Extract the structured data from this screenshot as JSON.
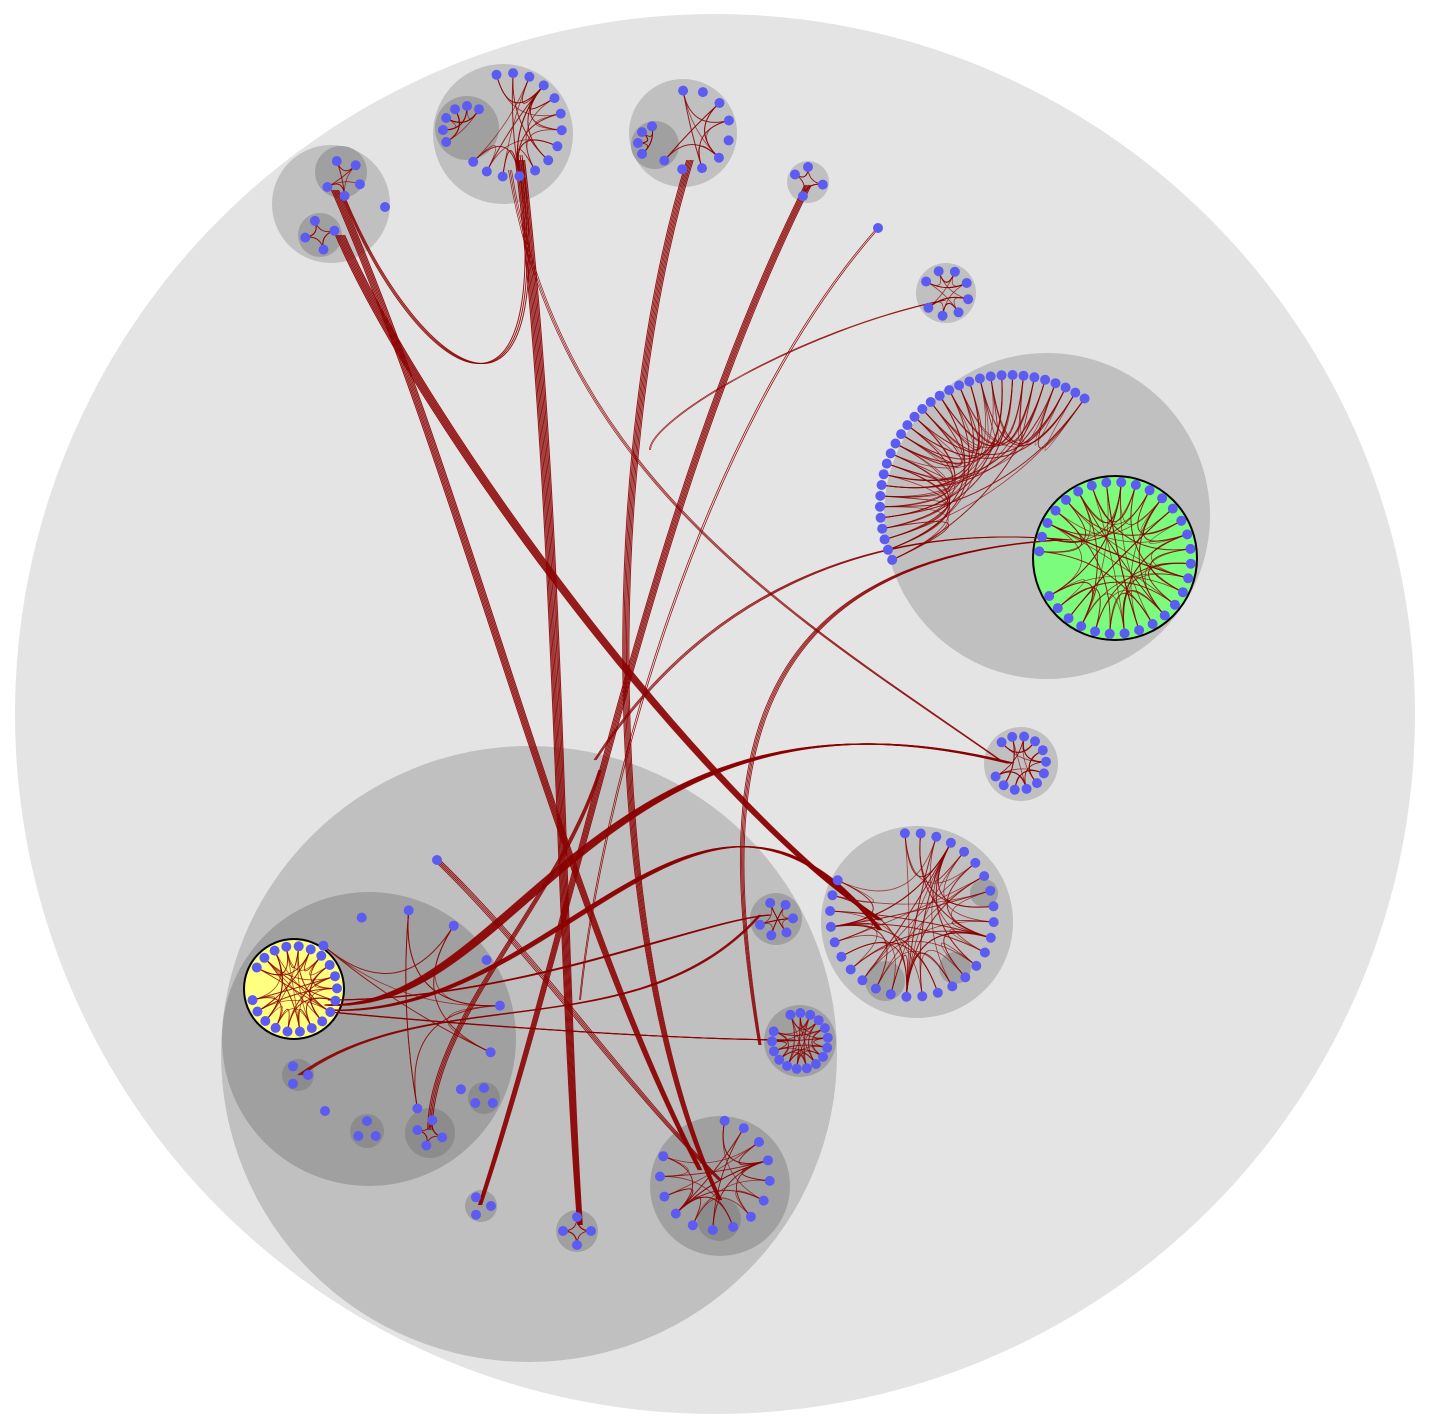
{
  "colors": {
    "background": "#ffffff",
    "outer_circle": "#e4e4e4",
    "level1_cluster": "#c0c0c0",
    "level2_cluster": "#a0a0a0",
    "level3_cluster": "#8c8c8c",
    "node": "#5c5cf2",
    "edge": "#8b0000",
    "highlight_green": "#7cfc7c",
    "highlight_yellow": "#ffff80",
    "highlight_stroke": "#000000"
  },
  "diagram": {
    "type": "hierarchical-edge-bundling",
    "highlighted_clusters": [
      "green",
      "yellow"
    ]
  }
}
